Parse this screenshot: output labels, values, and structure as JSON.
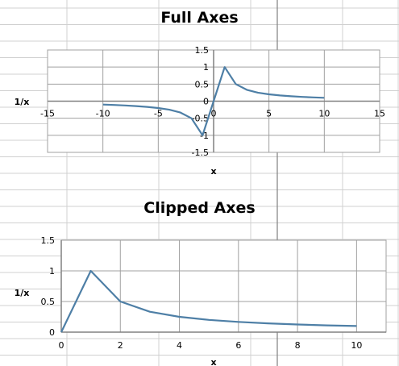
{
  "sheet": {
    "grid_color": "#d0d0d0",
    "page_break_color": "#808080"
  },
  "style": {
    "line_color": "#4e7fa6",
    "plot_grid_color": "#a0a0a0",
    "axis_color": "#808080"
  },
  "chart_data": [
    {
      "type": "line",
      "title": "Full Axes",
      "xlabel": "x",
      "ylabel": "1/x",
      "xlim": [
        -15,
        15
      ],
      "ylim": [
        -1.5,
        1.5
      ],
      "xticks": [
        -15,
        -10,
        -5,
        0,
        5,
        10,
        15
      ],
      "yticks": [
        -1.5,
        -1,
        -0.5,
        0,
        0.5,
        1,
        1.5
      ],
      "xtick_labels": [
        "-15",
        "-10",
        "-5",
        "0",
        "5",
        "10",
        "15"
      ],
      "ytick_labels": [
        "-1.5",
        "-1",
        "-0.5",
        "0",
        "0.5",
        "1",
        "1.5"
      ],
      "grid": true,
      "legend": "none",
      "series": [
        {
          "x": [
            -10,
            -9,
            -8,
            -7,
            -6,
            -5,
            -4,
            -3,
            -2,
            -1,
            0,
            1,
            2,
            3,
            4,
            5,
            6,
            7,
            8,
            9,
            10
          ],
          "y": [
            -0.1,
            -0.111,
            -0.125,
            -0.143,
            -0.167,
            -0.2,
            -0.25,
            -0.333,
            -0.5,
            -1,
            0,
            1,
            0.5,
            0.333,
            0.25,
            0.2,
            0.167,
            0.143,
            0.125,
            0.111,
            0.1
          ]
        }
      ]
    },
    {
      "type": "line",
      "title": "Clipped Axes",
      "xlabel": "x",
      "ylabel": "1/x",
      "xlim": [
        0,
        11
      ],
      "ylim": [
        0,
        1.5
      ],
      "xticks": [
        0,
        2,
        4,
        6,
        8,
        10
      ],
      "yticks": [
        0,
        0.5,
        1,
        1.5
      ],
      "xtick_labels": [
        "0",
        "2",
        "4",
        "6",
        "8",
        "10"
      ],
      "ytick_labels": [
        "0",
        "0.5",
        "1",
        "1.5"
      ],
      "grid": true,
      "legend": "none",
      "series": [
        {
          "x": [
            0,
            1,
            2,
            3,
            4,
            5,
            6,
            7,
            8,
            9,
            10
          ],
          "y": [
            0,
            1,
            0.5,
            0.333,
            0.25,
            0.2,
            0.167,
            0.143,
            0.125,
            0.111,
            0.1
          ]
        }
      ]
    }
  ]
}
